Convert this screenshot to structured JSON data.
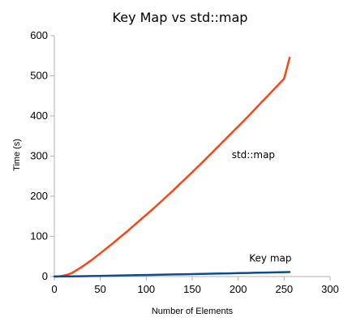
{
  "chart_data": {
    "type": "line",
    "title": "Key Map vs std::map",
    "xlabel": "Number of Elements",
    "ylabel": "Time (s)",
    "xlim": [
      0,
      300
    ],
    "ylim": [
      0,
      600
    ],
    "xticks": [
      0,
      50,
      100,
      150,
      200,
      250,
      300
    ],
    "yticks": [
      0,
      100,
      200,
      300,
      400,
      500,
      600
    ],
    "grid": false,
    "legend": "none",
    "series": [
      {
        "name": "std::map",
        "color": "#ff4419",
        "x": [
          0,
          5,
          10,
          15,
          20,
          25,
          30,
          40,
          50,
          60,
          70,
          80,
          90,
          100,
          110,
          120,
          130,
          140,
          150,
          160,
          170,
          180,
          190,
          200,
          210,
          220,
          230,
          240,
          250,
          256
        ],
        "y": [
          0,
          0.5,
          2,
          5,
          10,
          17,
          24,
          40,
          58,
          76,
          95,
          114,
          134,
          154,
          174,
          195,
          216,
          238,
          260,
          282,
          305,
          328,
          351,
          374,
          397,
          421,
          445,
          469,
          493,
          545
        ]
      },
      {
        "name": "Key map",
        "color": "#0f4d8a",
        "x": [
          0,
          10,
          20,
          30,
          40,
          50,
          60,
          70,
          80,
          90,
          100,
          110,
          120,
          130,
          140,
          150,
          160,
          170,
          180,
          190,
          200,
          210,
          220,
          230,
          240,
          250,
          256
        ],
        "y": [
          0,
          0.2,
          0.5,
          0.9,
          1.3,
          1.7,
          2.1,
          2.6,
          3.0,
          3.4,
          3.9,
          4.3,
          4.8,
          5.2,
          5.7,
          6.1,
          6.6,
          7.0,
          7.5,
          7.9,
          8.4,
          8.9,
          9.4,
          9.9,
          10.4,
          10.9,
          11.2
        ]
      }
    ],
    "annotations": [
      {
        "text": "std::map",
        "x": 193,
        "y": 295
      },
      {
        "text": "Key map",
        "x": 212,
        "y": 37
      }
    ]
  }
}
